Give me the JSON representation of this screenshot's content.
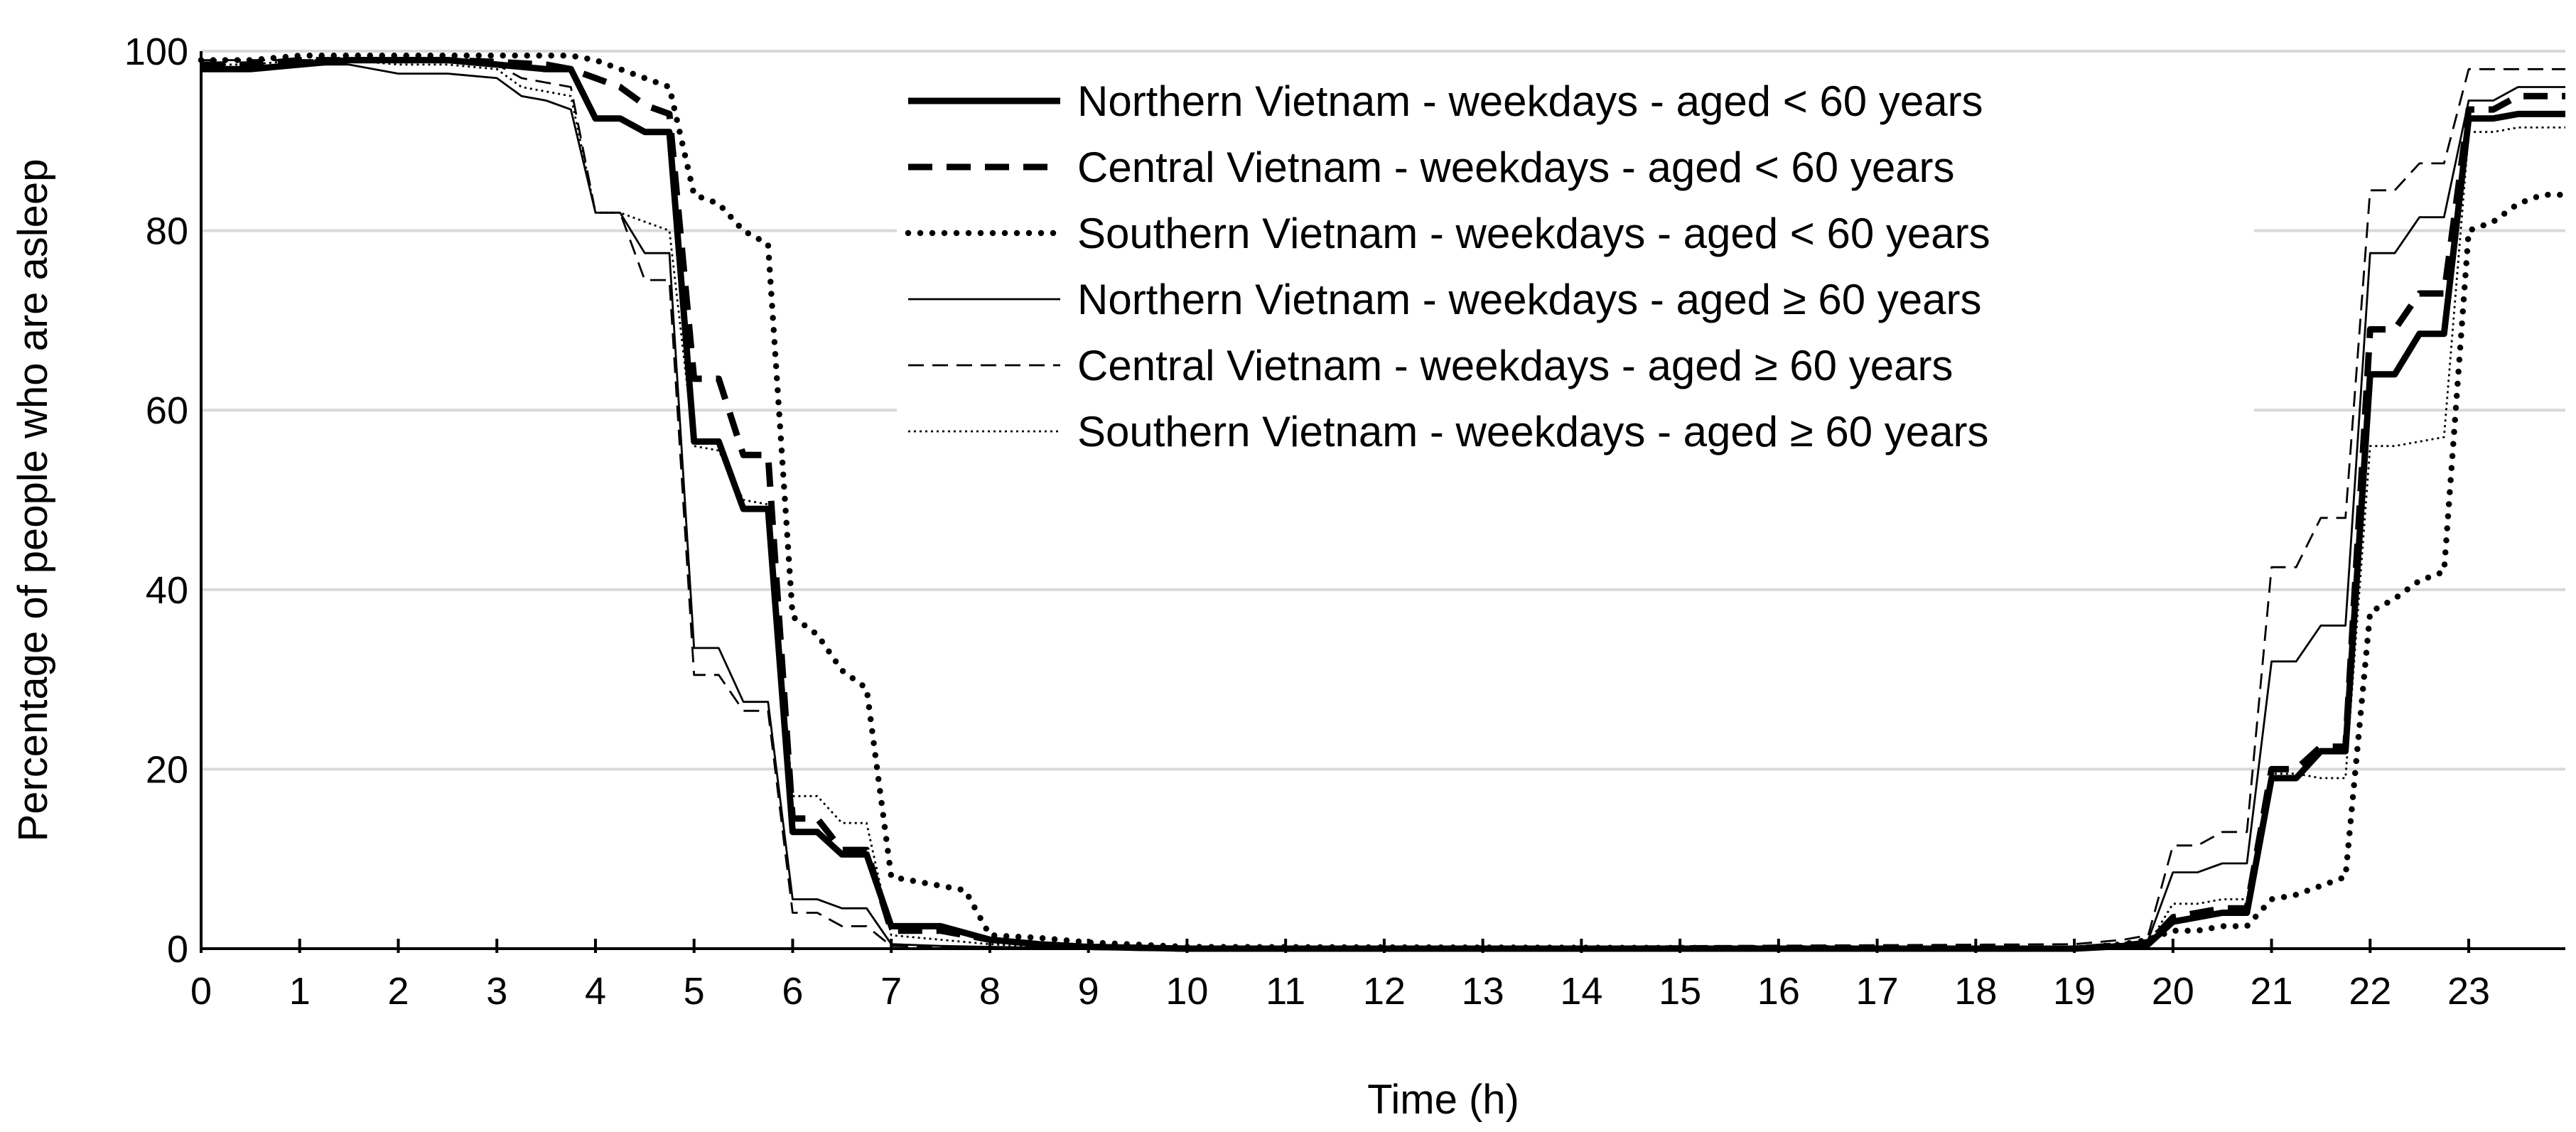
{
  "chart_data": {
    "type": "line",
    "title": "",
    "xlabel": "Time (h)",
    "ylabel": "Percentage of people who are asleep",
    "xlim": [
      0,
      23.98
    ],
    "ylim": [
      0,
      100
    ],
    "x_ticks": [
      0,
      1,
      2,
      3,
      4,
      5,
      6,
      7,
      8,
      9,
      10,
      11,
      12,
      13,
      14,
      15,
      16,
      17,
      18,
      19,
      20,
      21,
      22,
      23
    ],
    "x_tick_labels": [
      "0",
      "1",
      "2",
      "3",
      "4",
      "5",
      "6",
      "7",
      "8",
      "9",
      "10",
      "11",
      "12",
      "13",
      "14",
      "15",
      "16",
      "17",
      "18",
      "19",
      "20",
      "21",
      "22",
      "23"
    ],
    "y_ticks": [
      0,
      20,
      40,
      60,
      80,
      100
    ],
    "y_tick_labels": [
      "0",
      "20",
      "40",
      "60",
      "80",
      "100"
    ],
    "grid": "horizontal",
    "legend_position": "top-center",
    "series": [
      {
        "name": "Northern Vietnam - weekdays - aged < 60 years",
        "style": "solid-thick",
        "x": [
          0,
          0.5,
          1,
          1.5,
          2,
          2.5,
          3,
          3.5,
          3.75,
          4,
          4.25,
          4.5,
          4.75,
          5,
          5.25,
          5.5,
          5.75,
          6,
          6.25,
          6.5,
          6.75,
          7,
          7.5,
          8,
          8.5,
          9,
          10,
          19,
          19.5,
          19.75,
          20,
          20.25,
          20.5,
          20.75,
          21,
          21.25,
          21.5,
          21.75,
          22,
          22.25,
          22.5,
          22.75,
          23,
          23.25,
          23.5,
          23.75,
          23.98
        ],
        "y": [
          98,
          98,
          98.5,
          99,
          99,
          99,
          98.5,
          98,
          98,
          92.5,
          92.5,
          91,
          91,
          56.5,
          56.5,
          49,
          49,
          13,
          13,
          10.5,
          10.5,
          2.5,
          2.5,
          1,
          0.5,
          0.2,
          0,
          0,
          0.3,
          0.5,
          3,
          3.5,
          4,
          4,
          19,
          19,
          22,
          22,
          64,
          64,
          68.5,
          68.5,
          92.5,
          92.5,
          93,
          93,
          93
        ]
      },
      {
        "name": "Central Vietnam - weekdays - aged < 60 years",
        "style": "dashed-thick",
        "x": [
          0,
          0.5,
          1,
          1.5,
          2,
          2.5,
          3,
          3.5,
          3.75,
          4,
          4.25,
          4.5,
          4.75,
          5,
          5.25,
          5.5,
          5.75,
          6,
          6.25,
          6.5,
          6.75,
          7,
          7.5,
          8,
          8.5,
          9,
          10,
          19,
          19.5,
          19.75,
          20,
          20.25,
          20.5,
          20.75,
          21,
          21.25,
          21.5,
          21.75,
          22,
          22.25,
          22.5,
          22.75,
          23,
          23.25,
          23.5,
          23.75,
          23.98
        ],
        "y": [
          98.5,
          98.5,
          99,
          99,
          99,
          99,
          98.8,
          98.5,
          98,
          97,
          96,
          94,
          93,
          63.5,
          63.5,
          55,
          55,
          14.5,
          14.5,
          11,
          11,
          2,
          2,
          1,
          0.5,
          0.2,
          0,
          0,
          0.4,
          0.6,
          3.5,
          4,
          4.5,
          4.5,
          20,
          20,
          22.5,
          22.5,
          69,
          69,
          73,
          73,
          93.5,
          93.5,
          95,
          95,
          95
        ]
      },
      {
        "name": "Southern Vietnam - weekdays - aged < 60 years",
        "style": "dotted-thick",
        "x": [
          0,
          0.5,
          1,
          1.5,
          2,
          2.5,
          3,
          3.5,
          3.75,
          4,
          4.25,
          4.5,
          4.75,
          5,
          5.25,
          5.5,
          5.75,
          6,
          6.25,
          6.5,
          6.75,
          7,
          7.25,
          7.5,
          7.75,
          8,
          8.5,
          9,
          10,
          19,
          19.5,
          19.75,
          20,
          20.25,
          20.5,
          20.75,
          21,
          21.25,
          21.5,
          21.75,
          22,
          22.25,
          22.5,
          22.75,
          23,
          23.25,
          23.5,
          23.75,
          23.98
        ],
        "y": [
          99,
          99,
          99.5,
          99.5,
          99.5,
          99.5,
          99.5,
          99.5,
          99.5,
          99,
          98,
          97,
          96,
          84,
          83,
          80,
          78.5,
          37,
          35,
          31,
          29,
          8,
          7.5,
          7,
          6.5,
          1.5,
          1.2,
          0.7,
          0.2,
          0,
          0.5,
          1,
          2,
          2,
          2.5,
          2.5,
          5.5,
          6,
          7,
          8,
          37.5,
          39,
          41,
          42,
          80,
          81,
          83,
          84,
          84
        ]
      },
      {
        "name": "Northern Vietnam - weekdays - aged ≥ 60 years",
        "style": "solid-thin",
        "x": [
          0,
          0.5,
          1,
          1.5,
          2,
          2.5,
          3,
          3.25,
          3.5,
          3.75,
          4,
          4.25,
          4.5,
          4.75,
          5,
          5.25,
          5.5,
          5.75,
          6,
          6.25,
          6.5,
          6.75,
          7,
          7.5,
          8,
          8.5,
          9,
          10,
          19,
          19.5,
          19.75,
          20,
          20.25,
          20.5,
          20.75,
          21,
          21.25,
          21.5,
          21.75,
          22,
          22.25,
          22.5,
          22.75,
          23,
          23.25,
          23.5,
          23.75,
          23.98
        ],
        "y": [
          98,
          98,
          98.5,
          98.5,
          97.5,
          97.5,
          97,
          95,
          94.5,
          93.5,
          82,
          82,
          77.5,
          77.5,
          33.5,
          33.5,
          27.5,
          27.5,
          5.5,
          5.5,
          4.5,
          4.5,
          0.5,
          0.3,
          0.2,
          0.1,
          0,
          0,
          0,
          0.5,
          1,
          8.5,
          8.5,
          9.5,
          9.5,
          32,
          32,
          36,
          36,
          77.5,
          77.5,
          81.5,
          81.5,
          94.5,
          94.5,
          96,
          96,
          96
        ]
      },
      {
        "name": "Central Vietnam - weekdays - aged ≥ 60 years",
        "style": "dashed-thin",
        "x": [
          0,
          0.5,
          1,
          1.5,
          2,
          2.5,
          3,
          3.25,
          3.5,
          3.75,
          4,
          4.25,
          4.5,
          4.75,
          5,
          5.25,
          5.5,
          5.75,
          6,
          6.25,
          6.5,
          6.75,
          7,
          7.5,
          8,
          8.5,
          9,
          10,
          19,
          19.5,
          19.75,
          20,
          20.25,
          20.5,
          20.75,
          21,
          21.25,
          21.5,
          21.75,
          22,
          22.25,
          22.5,
          22.75,
          23,
          23.25,
          23.5,
          23.75,
          23.98
        ],
        "y": [
          99,
          99,
          99,
          99,
          99,
          99,
          98.5,
          97,
          96.5,
          96,
          82,
          82,
          74.5,
          74.5,
          30.5,
          30.5,
          26.5,
          26.5,
          4,
          4,
          2.5,
          2.5,
          0.3,
          0.2,
          0.1,
          0,
          0,
          0,
          0.5,
          1,
          1.5,
          11.5,
          11.5,
          13,
          13,
          42.5,
          42.5,
          48,
          48,
          84.5,
          84.5,
          87.5,
          87.5,
          98,
          98,
          98,
          98,
          98
        ]
      },
      {
        "name": "Southern Vietnam - weekdays - aged ≥ 60 years",
        "style": "dotted-thin",
        "x": [
          0,
          0.5,
          1,
          1.5,
          2,
          2.5,
          3,
          3.25,
          3.5,
          3.75,
          4,
          4.25,
          4.5,
          4.75,
          5,
          5.25,
          5.5,
          5.75,
          6,
          6.25,
          6.5,
          6.75,
          7,
          7.5,
          8,
          8.5,
          9,
          10,
          19,
          19.5,
          19.75,
          20,
          20.25,
          20.5,
          20.75,
          21,
          21.25,
          21.5,
          21.75,
          22,
          22.25,
          22.5,
          22.75,
          23,
          23.25,
          23.5,
          23.75,
          23.98
        ],
        "y": [
          98.5,
          98.5,
          99,
          99,
          98.5,
          98.5,
          98,
          96,
          95.5,
          95,
          82,
          82,
          81,
          80,
          56,
          55.5,
          50,
          49.5,
          17,
          17,
          14,
          14,
          1.5,
          1,
          0.5,
          0.2,
          0,
          0,
          0,
          0.2,
          0.5,
          5,
          5,
          5.5,
          5.5,
          19.5,
          19.5,
          19,
          19,
          56,
          56,
          56.5,
          57,
          91,
          91,
          91.5,
          91.5,
          91.5
        ]
      }
    ]
  }
}
